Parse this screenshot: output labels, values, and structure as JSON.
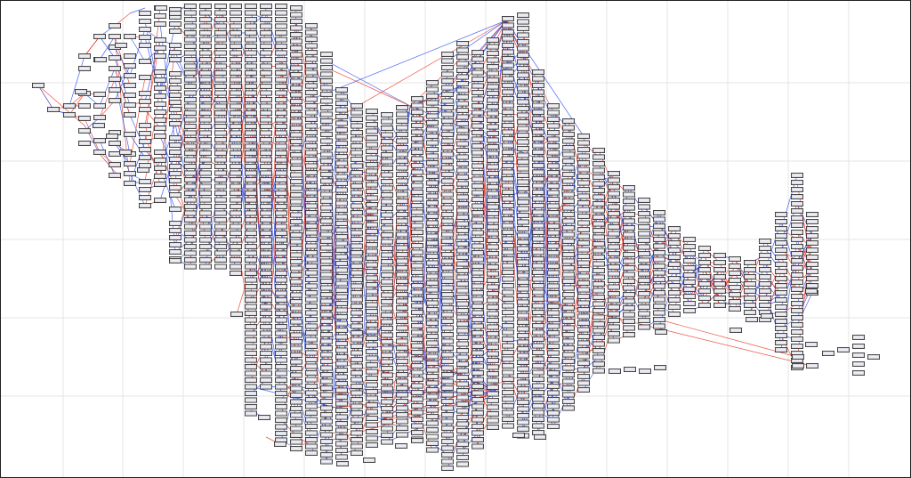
{
  "diagram": {
    "type": "layered-graph",
    "background": "#ffffff",
    "grid_color": "#e4e4e4",
    "node_fill": "#dcdce6",
    "node_stroke": "#222222",
    "edge_colors": {
      "primary": "#e8321e",
      "secondary": "#2c4bef"
    },
    "labels_visible": false
  }
}
